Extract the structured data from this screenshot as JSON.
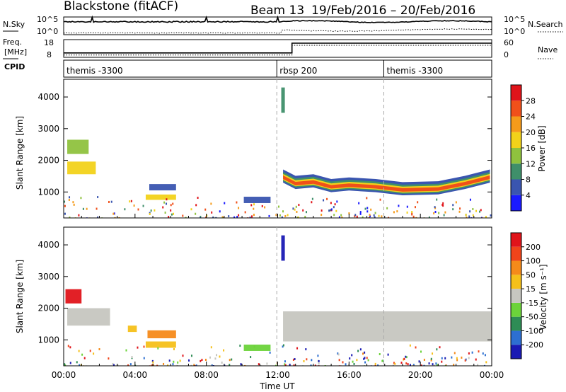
{
  "header": {
    "station": "Blackstone (fitACF)",
    "beam": "Beam 13",
    "date_range": "19/Feb/2016 – 20/Feb/2016"
  },
  "noise_panel": {
    "left_label": "N.Sky",
    "left_ticks": [
      "10^5",
      "10^0"
    ],
    "right_ticks": [
      "10^5",
      "10^0"
    ],
    "right_label": "N.Search"
  },
  "freq_panel": {
    "left_label_top": "Freq.",
    "left_label_bottom": "[MHz]",
    "left_ticks": [
      "18",
      "8"
    ],
    "right_ticks": [
      "60",
      "0"
    ],
    "right_label": "Nave",
    "freq_steps": [
      {
        "t": 0,
        "v": 10.5
      },
      {
        "t": 12.8,
        "v": 10.5
      },
      {
        "t": 12.8,
        "v": 16.0
      },
      {
        "t": 24,
        "v": 16.0
      }
    ]
  },
  "cpid": {
    "label": "CPID",
    "segments": [
      {
        "start": 0,
        "name": "themis -3300"
      },
      {
        "start": 11.95,
        "name": "rbsp 200"
      },
      {
        "start": 17.95,
        "name": "themis -3300"
      }
    ]
  },
  "axes": {
    "x_ticks": [
      "00:00",
      "04:00",
      "08:00",
      "12:00",
      "16:00",
      "20:00",
      "00:00"
    ],
    "x_tick_hours": [
      0,
      4,
      8,
      12,
      16,
      20,
      24
    ],
    "x_label": "Time UT",
    "y_label": "Slant Range [km]",
    "y_ticks": [
      "1000",
      "2000",
      "3000",
      "4000"
    ],
    "y_tick_values": [
      1000,
      2000,
      3000,
      4000
    ],
    "y_range": [
      180,
      4560
    ],
    "x_range_hours": [
      0,
      24
    ]
  },
  "power_colorbar": {
    "label": "Power [dB]",
    "ticks": [
      "4",
      "8",
      "12",
      "16",
      "20",
      "24",
      "28"
    ],
    "colors": [
      "#1a1aff",
      "#3a55b0",
      "#3f8f6a",
      "#8fc23e",
      "#f2d21a",
      "#f59b1a",
      "#f0501a",
      "#e0141a"
    ]
  },
  "velocity_colorbar": {
    "label": "Velocity [m s⁻¹]",
    "ticks": [
      "200",
      "100",
      "50",
      "15",
      "-15",
      "-50",
      "-100",
      "-200"
    ],
    "colors": [
      "#1a1ab4",
      "#2d6fd1",
      "#2e8c55",
      "#6cd33a",
      "#c6c6c0",
      "#f5c01a",
      "#f58a1a",
      "#f0441a",
      "#e0141a"
    ]
  },
  "chart_data": [
    {
      "type": "heatmap",
      "panel": "power",
      "x_unit": "hours UT",
      "y_unit": "km",
      "regions": [
        {
          "t0": 0.2,
          "t1": 1.8,
          "r0": 1560,
          "r1": 1960,
          "level": 4
        },
        {
          "t0": 0.2,
          "t1": 1.4,
          "r0": 2200,
          "r1": 2650,
          "level": 3
        },
        {
          "t0": 4.6,
          "t1": 6.3,
          "r0": 750,
          "r1": 920,
          "level": 4
        },
        {
          "t0": 4.8,
          "t1": 6.3,
          "r0": 1050,
          "r1": 1250,
          "level": 1
        },
        {
          "t0": 10.1,
          "t1": 11.6,
          "r0": 650,
          "r1": 850,
          "level": 1
        },
        {
          "t0": 12.2,
          "t1": 12.4,
          "r0": 3500,
          "r1": 4300,
          "level": 2
        }
      ],
      "band": [
        {
          "t": 12.3,
          "r": 1450
        },
        {
          "t": 13.0,
          "r": 1250
        },
        {
          "t": 14.0,
          "r": 1300
        },
        {
          "t": 15.0,
          "r": 1150
        },
        {
          "t": 16.0,
          "r": 1200
        },
        {
          "t": 17.5,
          "r": 1150
        },
        {
          "t": 19.0,
          "r": 1050
        },
        {
          "t": 21.0,
          "r": 1080
        },
        {
          "t": 22.5,
          "r": 1250
        },
        {
          "t": 23.9,
          "r": 1450
        }
      ]
    },
    {
      "type": "heatmap",
      "panel": "velocity",
      "x_unit": "hours UT",
      "y_unit": "km",
      "regions": [
        {
          "t0": 0.1,
          "t1": 1.0,
          "r0": 2150,
          "r1": 2600,
          "level": 8
        },
        {
          "t0": 0.2,
          "t1": 2.6,
          "r0": 1450,
          "r1": 2000,
          "level": 4
        },
        {
          "t0": 4.7,
          "t1": 6.3,
          "r0": 1050,
          "r1": 1300,
          "level": 6
        },
        {
          "t0": 4.6,
          "t1": 6.3,
          "r0": 750,
          "r1": 950,
          "level": 5
        },
        {
          "t0": 3.6,
          "t1": 4.1,
          "r0": 1250,
          "r1": 1450,
          "level": 5
        },
        {
          "t0": 10.1,
          "t1": 11.6,
          "r0": 650,
          "r1": 850,
          "level": 3
        },
        {
          "t0": 12.3,
          "t1": 24.0,
          "r0": 950,
          "r1": 1900,
          "level": 4
        },
        {
          "t0": 12.2,
          "t1": 12.4,
          "r0": 3500,
          "r1": 4300,
          "level": 0
        }
      ]
    }
  ]
}
